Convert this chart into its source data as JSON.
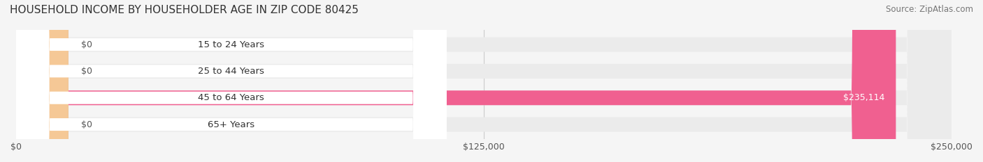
{
  "title": "HOUSEHOLD INCOME BY HOUSEHOLDER AGE IN ZIP CODE 80425",
  "source": "Source: ZipAtlas.com",
  "categories": [
    "15 to 24 Years",
    "25 to 44 Years",
    "45 to 64 Years",
    "65+ Years"
  ],
  "values": [
    0,
    0,
    235114,
    0
  ],
  "bar_colors": [
    "#5bc8c8",
    "#9b9bd4",
    "#f06090",
    "#f5c896"
  ],
  "label_colors": [
    "#5bc8c8",
    "#9b9bd4",
    "#f06090",
    "#f5c896"
  ],
  "background_color": "#f5f5f5",
  "bar_bg_color": "#ebebeb",
  "xlim": [
    0,
    250000
  ],
  "xticks": [
    0,
    125000,
    250000
  ],
  "xtick_labels": [
    "$0",
    "$125,000",
    "$250,000"
  ],
  "value_labels": [
    "$0",
    "$0",
    "$235,114",
    "$0"
  ],
  "title_fontsize": 11,
  "source_fontsize": 8.5,
  "tick_fontsize": 9,
  "bar_label_fontsize": 9,
  "figsize": [
    14.06,
    2.33
  ],
  "dpi": 100
}
